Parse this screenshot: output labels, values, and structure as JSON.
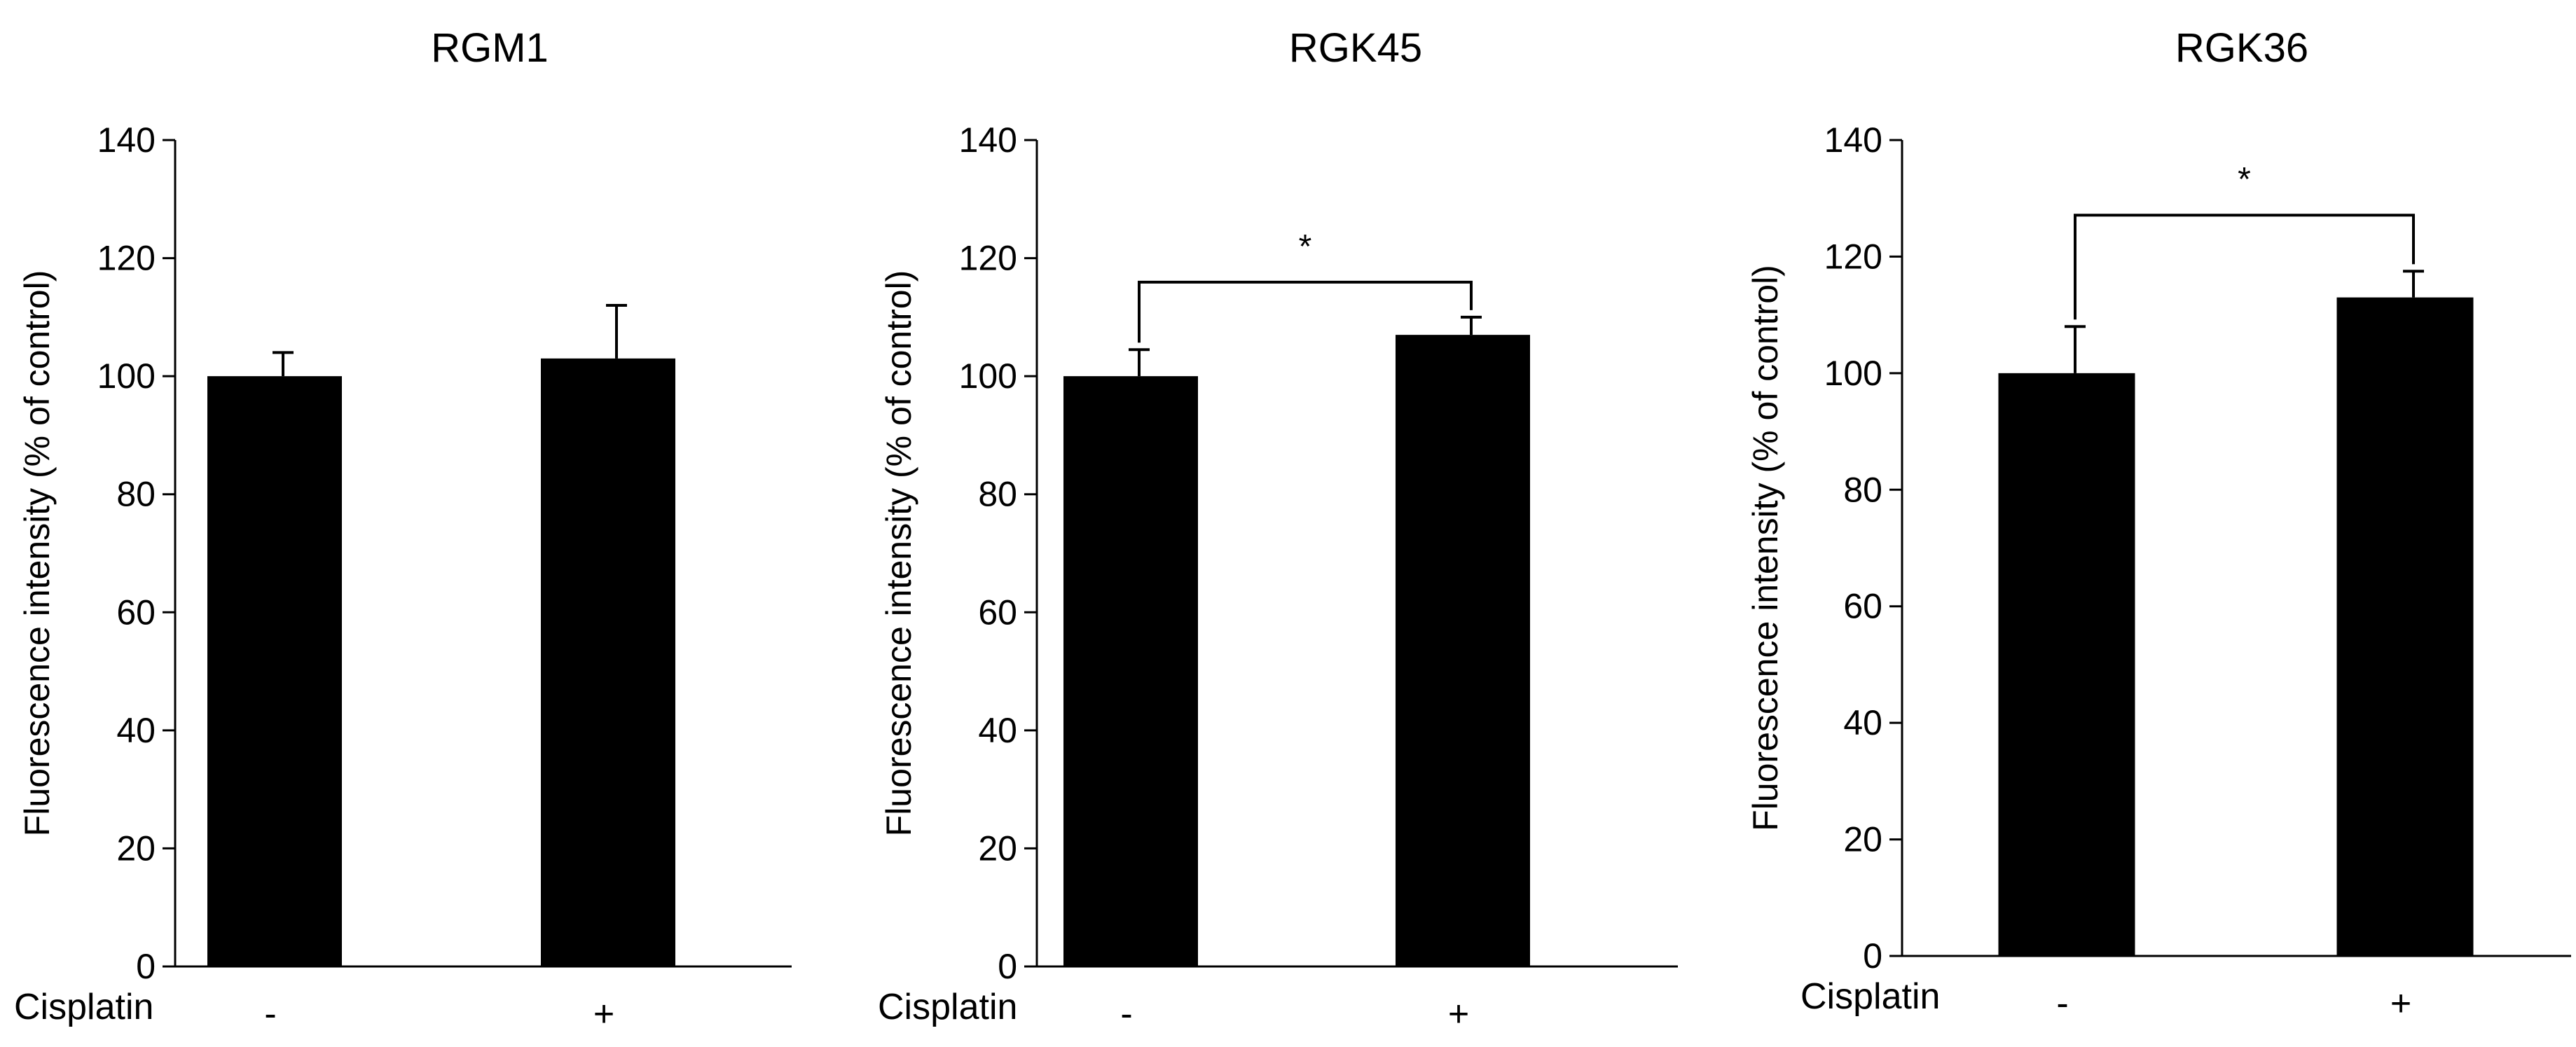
{
  "chart_data": [
    {
      "type": "bar",
      "title": "RGM1",
      "ylabel": "Fluorescence intensity (% of control)",
      "x_name": "Cisplatin",
      "categories": [
        "-",
        "+"
      ],
      "values": [
        100,
        103
      ],
      "error": [
        4,
        9
      ],
      "ylim": [
        0,
        140
      ],
      "yticks": [
        "0",
        "20",
        "40",
        "60",
        "80",
        "100",
        "120",
        "140"
      ],
      "significance": null,
      "bar_color": "#000000"
    },
    {
      "type": "bar",
      "title": "RGK45",
      "ylabel": "Fluorescence intensity (% of control)",
      "x_name": "Cisplatin",
      "categories": [
        "-",
        "+"
      ],
      "values": [
        100,
        107
      ],
      "error": [
        4.5,
        3
      ],
      "ylim": [
        0,
        140
      ],
      "yticks": [
        "0",
        "20",
        "40",
        "60",
        "80",
        "100",
        "120",
        "140"
      ],
      "significance": {
        "label": "*",
        "between": [
          0,
          1
        ]
      },
      "bar_color": "#000000"
    },
    {
      "type": "bar",
      "title": "RGK36",
      "ylabel": "Fluorescence intensity (% of control)",
      "x_name": "Cisplatin",
      "categories": [
        "-",
        "+"
      ],
      "values": [
        100,
        113
      ],
      "error": [
        8,
        4.5
      ],
      "ylim": [
        0,
        140
      ],
      "yticks": [
        "0",
        "20",
        "40",
        "60",
        "80",
        "100",
        "120",
        "140"
      ],
      "significance": {
        "label": "*",
        "between": [
          0,
          1
        ]
      },
      "bar_color": "#000000"
    }
  ]
}
